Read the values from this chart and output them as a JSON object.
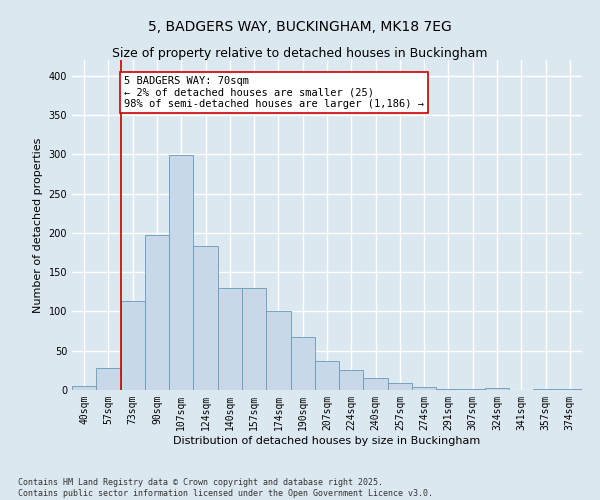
{
  "title1": "5, BADGERS WAY, BUCKINGHAM, MK18 7EG",
  "title2": "Size of property relative to detached houses in Buckingham",
  "xlabel": "Distribution of detached houses by size in Buckingham",
  "ylabel": "Number of detached properties",
  "bar_labels": [
    "40sqm",
    "57sqm",
    "73sqm",
    "90sqm",
    "107sqm",
    "124sqm",
    "140sqm",
    "157sqm",
    "174sqm",
    "190sqm",
    "207sqm",
    "224sqm",
    "240sqm",
    "257sqm",
    "274sqm",
    "291sqm",
    "307sqm",
    "324sqm",
    "341sqm",
    "357sqm",
    "374sqm"
  ],
  "bar_values": [
    5,
    28,
    113,
    197,
    299,
    183,
    130,
    130,
    101,
    68,
    37,
    26,
    15,
    9,
    4,
    1,
    1,
    2,
    0,
    1,
    1
  ],
  "bar_color": "#c8d8e8",
  "bar_edge_color": "#6699bb",
  "ylim": [
    0,
    420
  ],
  "yticks": [
    0,
    50,
    100,
    150,
    200,
    250,
    300,
    350,
    400
  ],
  "property_line_x": 1.5,
  "property_line_color": "#cc0000",
  "annotation_text": "5 BADGERS WAY: 70sqm\n← 2% of detached houses are smaller (25)\n98% of semi-detached houses are larger (1,186) →",
  "annotation_box_color": "#ffffff",
  "annotation_box_edge": "#cc0000",
  "footer_text": "Contains HM Land Registry data © Crown copyright and database right 2025.\nContains public sector information licensed under the Open Government Licence v3.0.",
  "bg_color": "#dce8f0",
  "plot_bg_color": "#dce8f0",
  "grid_color": "#ffffff",
  "title_fontsize": 10,
  "subtitle_fontsize": 9,
  "tick_fontsize": 7,
  "ylabel_fontsize": 8,
  "xlabel_fontsize": 8,
  "footer_fontsize": 6,
  "annotation_fontsize": 7.5
}
